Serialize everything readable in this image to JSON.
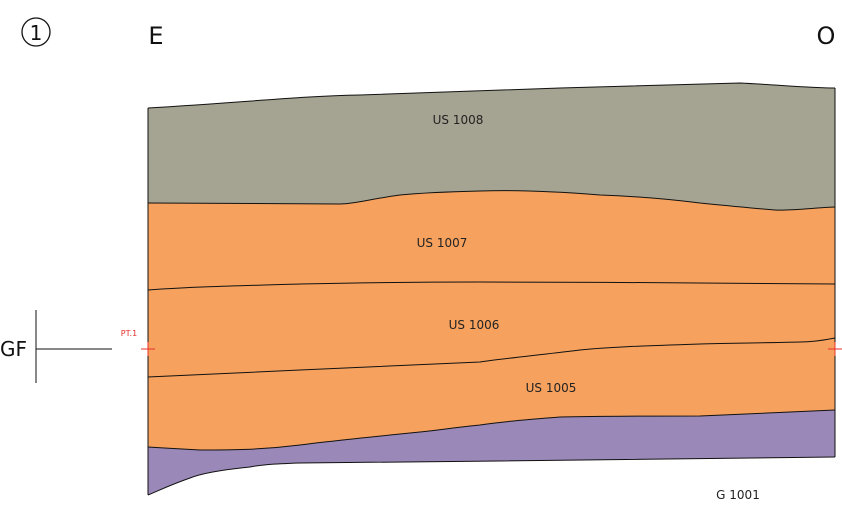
{
  "marker": "1",
  "orientation": {
    "left": "E",
    "right": "O"
  },
  "layers": [
    {
      "label": "US 1008"
    },
    {
      "label": "US 1007"
    },
    {
      "label": "US 1006"
    },
    {
      "label": "US 1005"
    }
  ],
  "datum": {
    "label": "GF",
    "point": "PT.1"
  },
  "caption": "G 1001"
}
